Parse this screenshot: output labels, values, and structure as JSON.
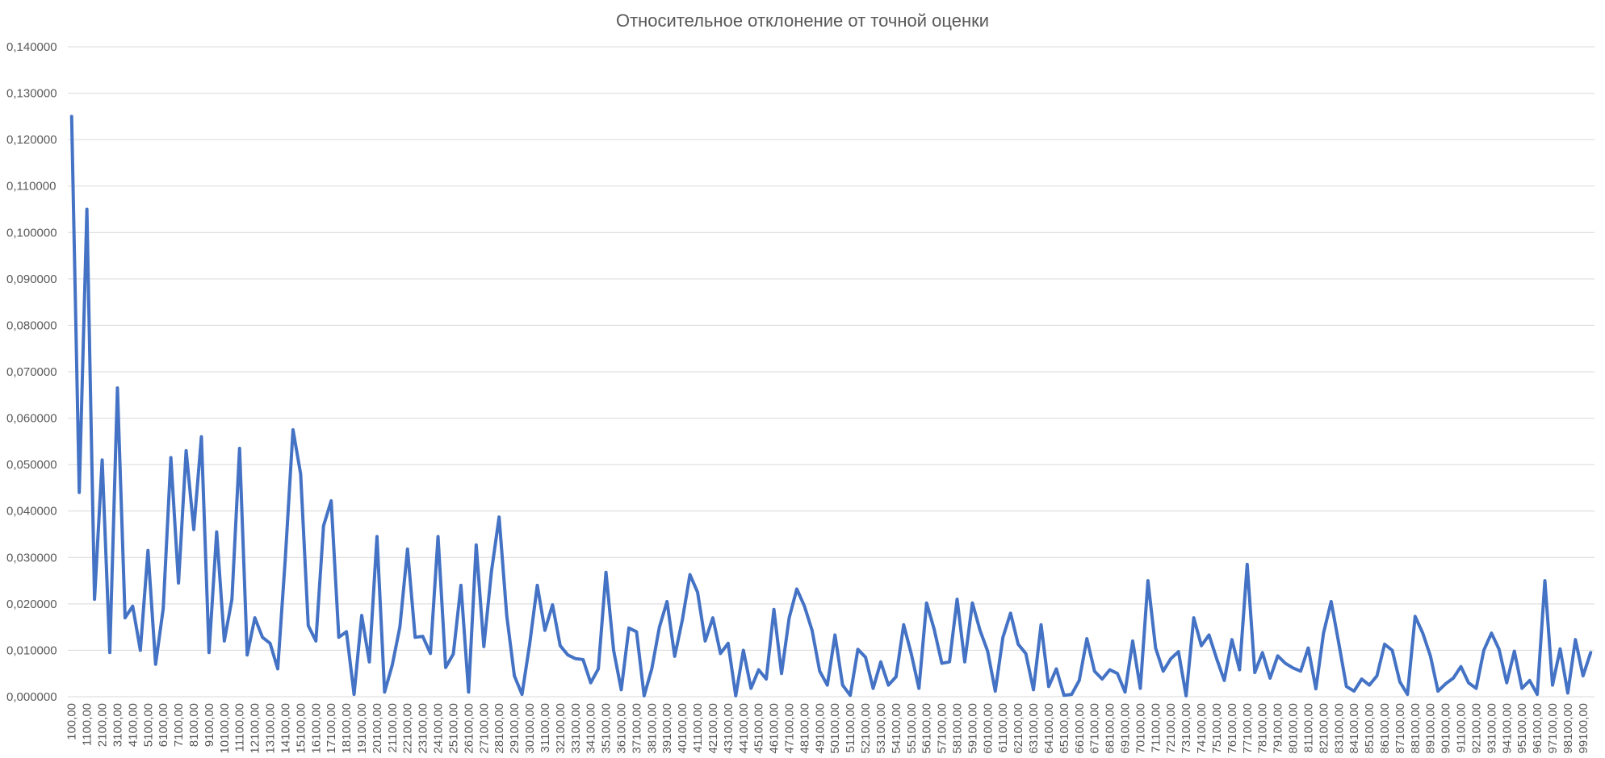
{
  "chart_data": {
    "type": "line",
    "title": "Относительное отклонение от точной оценки",
    "xlabel": "",
    "ylabel": "",
    "ylim": [
      0,
      0.14
    ],
    "y_ticks": [
      "0,000000",
      "0,010000",
      "0,020000",
      "0,030000",
      "0,040000",
      "0,050000",
      "0,060000",
      "0,070000",
      "0,080000",
      "0,090000",
      "0,100000",
      "0,110000",
      "0,120000",
      "0,130000",
      "0,140000"
    ],
    "x_tick_labels": [
      "100,00",
      "1100,00",
      "2100,00",
      "3100,00",
      "4100,00",
      "5100,00",
      "6100,00",
      "7100,00",
      "8100,00",
      "9100,00",
      "10100,00",
      "11100,00",
      "12100,00",
      "13100,00",
      "14100,00",
      "15100,00",
      "16100,00",
      "17100,00",
      "18100,00",
      "19100,00",
      "20100,00",
      "21100,00",
      "22100,00",
      "23100,00",
      "24100,00",
      "25100,00",
      "26100,00",
      "27100,00",
      "28100,00",
      "29100,00",
      "30100,00",
      "31100,00",
      "32100,00",
      "33100,00",
      "34100,00",
      "35100,00",
      "36100,00",
      "37100,00",
      "38100,00",
      "39100,00",
      "40100,00",
      "41100,00",
      "42100,00",
      "43100,00",
      "44100,00",
      "45100,00",
      "46100,00",
      "47100,00",
      "48100,00",
      "49100,00",
      "50100,00",
      "51100,00",
      "52100,00",
      "53100,00",
      "54100,00",
      "55100,00",
      "56100,00",
      "57100,00",
      "58100,00",
      "59100,00",
      "60100,00",
      "61100,00",
      "62100,00",
      "63100,00",
      "64100,00",
      "65100,00",
      "66100,00",
      "67100,00",
      "68100,00",
      "69100,00",
      "70100,00",
      "71100,00",
      "72100,00",
      "73100,00",
      "74100,00",
      "75100,00",
      "76100,00",
      "77100,00",
      "78100,00",
      "79100,00",
      "80100,00",
      "81100,00",
      "82100,00",
      "83100,00",
      "84100,00",
      "85100,00",
      "86100,00",
      "87100,00",
      "88100,00",
      "89100,00",
      "90100,00",
      "91100,00",
      "92100,00",
      "93100,00",
      "94100,00",
      "95100,00",
      "96100,00",
      "97100,00",
      "98100,00",
      "99100,00"
    ],
    "series": [
      {
        "color": "#4472c4",
        "values": [
          0.125,
          0.044,
          0.105,
          0.021,
          0.051,
          0.0095,
          0.0665,
          0.017,
          0.0195,
          0.01,
          0.0315,
          0.007,
          0.019,
          0.0515,
          0.0245,
          0.053,
          0.036,
          0.056,
          0.0095,
          0.0355,
          0.012,
          0.021,
          0.0535,
          0.009,
          0.017,
          0.0128,
          0.0115,
          0.006,
          0.03,
          0.0575,
          0.048,
          0.0153,
          0.012,
          0.0368,
          0.0422,
          0.0128,
          0.014,
          0.0005,
          0.0175,
          0.0075,
          0.0345,
          0.001,
          0.0068,
          0.015,
          0.0318,
          0.0128,
          0.013,
          0.0093,
          0.0345,
          0.0063,
          0.0092,
          0.024,
          0.001,
          0.0327,
          0.0108,
          0.027,
          0.0387,
          0.0175,
          0.0045,
          0.0005,
          0.0113,
          0.024,
          0.0143,
          0.0198,
          0.011,
          0.009,
          0.0082,
          0.008,
          0.003,
          0.006,
          0.0268,
          0.01,
          0.0015,
          0.0148,
          0.014,
          0.0002,
          0.006,
          0.015,
          0.0205,
          0.0087,
          0.0165,
          0.0263,
          0.0225,
          0.012,
          0.017,
          0.0093,
          0.0115,
          0.0002,
          0.01,
          0.0018,
          0.0058,
          0.0038,
          0.0188,
          0.005,
          0.017,
          0.0232,
          0.0195,
          0.0143,
          0.0055,
          0.0025,
          0.0133,
          0.0025,
          0.0003,
          0.0102,
          0.0085,
          0.0018,
          0.0075,
          0.0025,
          0.0043,
          0.0155,
          0.0092,
          0.0018,
          0.0202,
          0.0145,
          0.0072,
          0.0075,
          0.021,
          0.0075,
          0.0202,
          0.0143,
          0.0098,
          0.0012,
          0.0128,
          0.018,
          0.0113,
          0.0093,
          0.0015,
          0.0155,
          0.0022,
          0.006,
          0.0003,
          0.0005,
          0.0035,
          0.0125,
          0.0055,
          0.0038,
          0.0058,
          0.005,
          0.001,
          0.012,
          0.0018,
          0.025,
          0.0105,
          0.0055,
          0.0082,
          0.0097,
          0.0002,
          0.017,
          0.011,
          0.0133,
          0.0082,
          0.0035,
          0.0123,
          0.0058,
          0.0285,
          0.0052,
          0.0095,
          0.004,
          0.0088,
          0.0072,
          0.0062,
          0.0055,
          0.0105,
          0.0017,
          0.0137,
          0.0205,
          0.0115,
          0.0022,
          0.0012,
          0.0038,
          0.0025,
          0.0045,
          0.0113,
          0.01,
          0.0032,
          0.0005,
          0.0173,
          0.0137,
          0.0088,
          0.0012,
          0.0028,
          0.004,
          0.0065,
          0.003,
          0.0018,
          0.01,
          0.0137,
          0.0102,
          0.003,
          0.0098,
          0.0018,
          0.0035,
          0.0005,
          0.025,
          0.0025,
          0.0103,
          0.0008,
          0.0123,
          0.0045,
          0.0095
        ]
      }
    ],
    "grid": true,
    "legend": "none"
  }
}
